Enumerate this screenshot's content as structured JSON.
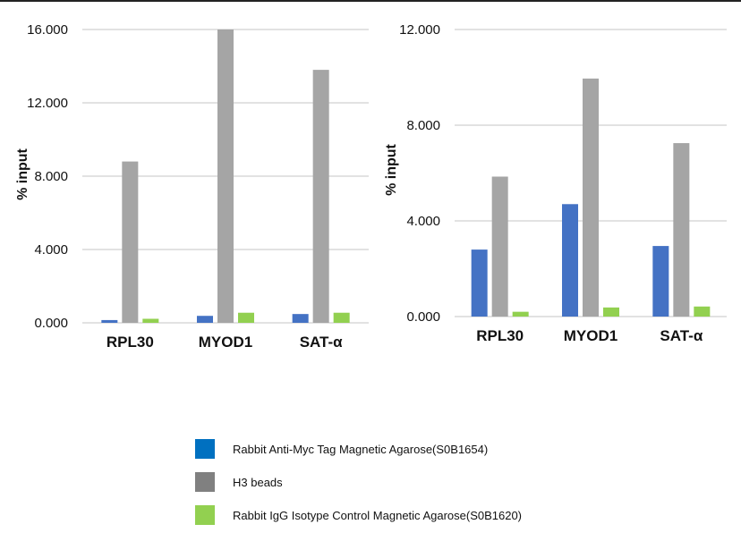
{
  "chart_data": [
    {
      "type": "bar",
      "ylabel": "% input",
      "categories": [
        "RPL30",
        "MYOD1",
        "SAT-α"
      ],
      "ylim": [
        0,
        16
      ],
      "yticks": [
        "0.000",
        "4.000",
        "8.000",
        "12.000",
        "16.000"
      ],
      "grid": true,
      "series": [
        {
          "name": "Rabbit Anti-Myc Tag Magnetic Agarose(S0B1654)",
          "values": [
            0.15,
            0.38,
            0.48
          ]
        },
        {
          "name": "H3 beads",
          "values": [
            8.8,
            16.0,
            13.8
          ]
        },
        {
          "name": "Rabbit IgG Isotype Control Magnetic Agarose(S0B1620)",
          "values": [
            0.22,
            0.55,
            0.55
          ]
        }
      ]
    },
    {
      "type": "bar",
      "ylabel": "% input",
      "categories": [
        "RPL30",
        "MYOD1",
        "SAT-α"
      ],
      "ylim": [
        0,
        12
      ],
      "yticks": [
        "0.000",
        "4.000",
        "8.000",
        "12.000"
      ],
      "grid": true,
      "series": [
        {
          "name": "Rabbit Anti-Myc Tag Magnetic Agarose(S0B1654)",
          "values": [
            2.8,
            4.7,
            2.95
          ]
        },
        {
          "name": "H3 beads",
          "values": [
            5.85,
            9.95,
            7.25
          ]
        },
        {
          "name": "Rabbit IgG Isotype Control Magnetic Agarose(S0B1620)",
          "values": [
            0.2,
            0.38,
            0.42
          ]
        }
      ]
    }
  ],
  "colors": {
    "anti_myc": "#4472C4",
    "h3_beads": "#A5A5A5",
    "igg": "#92D050",
    "grid": "#D9D9D9"
  },
  "legend": {
    "items": [
      {
        "label": "Rabbit Anti-Myc Tag Magnetic Agarose(S0B1654)",
        "color": "#0070C0"
      },
      {
        "label": "H3 beads",
        "color": "#808080"
      },
      {
        "label": "Rabbit IgG Isotype Control Magnetic Agarose(S0B1620)",
        "color": "#92D050"
      }
    ]
  }
}
